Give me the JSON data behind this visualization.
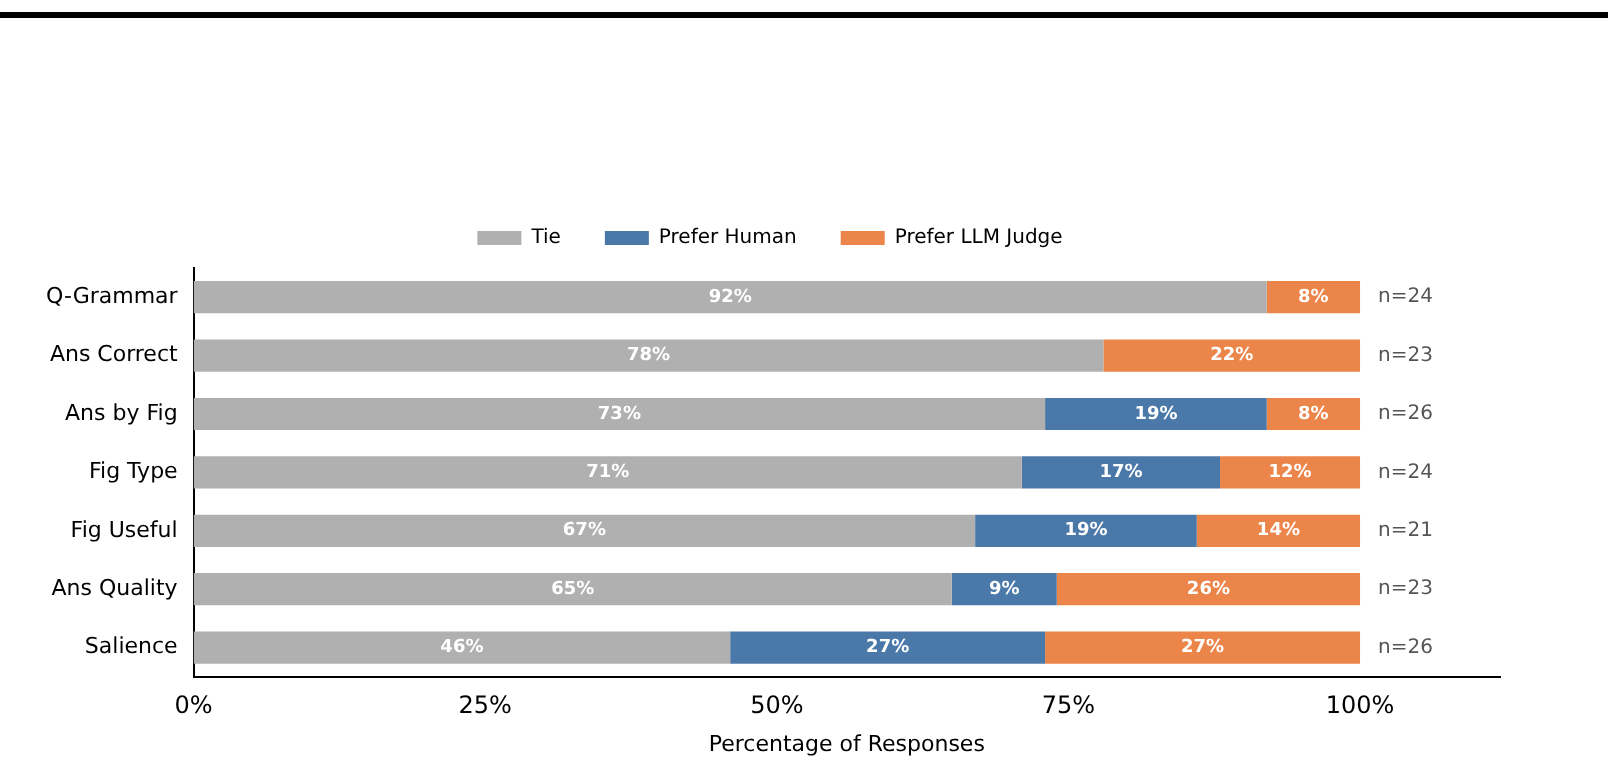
{
  "chart_data": {
    "type": "bar",
    "orientation": "horizontal",
    "stacked": true,
    "xlabel": "Percentage of Responses",
    "categories": [
      "Q-Grammar",
      "Ans Correct",
      "Ans by Fig",
      "Fig Type",
      "Fig Useful",
      "Ans Quality",
      "Salience"
    ],
    "series": [
      {
        "name": "Tie",
        "color": "#b0b0b0",
        "values": [
          92,
          78,
          73,
          71,
          67,
          65,
          46
        ],
        "value_labels": [
          "92%",
          "78%",
          "73%",
          "71%",
          "67%",
          "65%",
          "46%"
        ]
      },
      {
        "name": "Prefer Human",
        "color": "#4a78a8",
        "values": [
          null,
          null,
          19,
          17,
          19,
          9,
          27
        ],
        "value_labels": [
          null,
          null,
          "19%",
          "17%",
          "19%",
          "9%",
          "27%"
        ]
      },
      {
        "name": "Prefer LLM Judge",
        "color": "#eb8549",
        "values": [
          8,
          22,
          8,
          12,
          14,
          26,
          27
        ],
        "value_labels": [
          "8%",
          "22%",
          "8%",
          "12%",
          "14%",
          "26%",
          "27%"
        ]
      }
    ],
    "xlim": [
      0,
      112
    ],
    "xticks": [
      {
        "value": 0,
        "label": "0%"
      },
      {
        "value": 25,
        "label": "25%"
      },
      {
        "value": 50,
        "label": "50%"
      },
      {
        "value": 75,
        "label": "75%"
      },
      {
        "value": 100,
        "label": "100%"
      }
    ],
    "annotations": [
      "n=24",
      "n=23",
      "n=26",
      "n=24",
      "n=21",
      "n=23",
      "n=26"
    ],
    "legend": "top",
    "grid": false
  }
}
